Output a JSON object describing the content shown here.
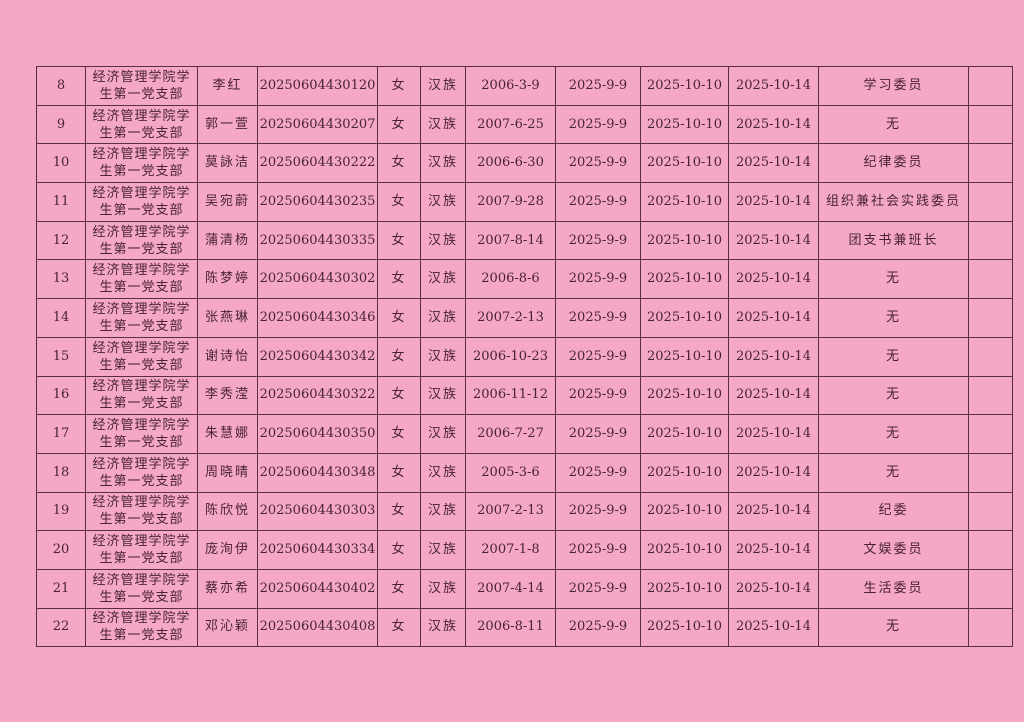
{
  "table": {
    "rows": [
      {
        "no": "8",
        "branch": "经济管理学院学生第一党支部",
        "name": "李红",
        "id": "20250604430120",
        "gender": "女",
        "ethnicity": "汉族",
        "birth": "2006-3-9",
        "date1": "2025-9-9",
        "date2": "2025-10-10",
        "date3": "2025-10-14",
        "role": "学习委员",
        "note": ""
      },
      {
        "no": "9",
        "branch": "经济管理学院学生第一党支部",
        "name": "郭一萱",
        "id": "20250604430207",
        "gender": "女",
        "ethnicity": "汉族",
        "birth": "2007-6-25",
        "date1": "2025-9-9",
        "date2": "2025-10-10",
        "date3": "2025-10-14",
        "role": "无",
        "note": ""
      },
      {
        "no": "10",
        "branch": "经济管理学院学生第一党支部",
        "name": "莫詠洁",
        "id": "20250604430222",
        "gender": "女",
        "ethnicity": "汉族",
        "birth": "2006-6-30",
        "date1": "2025-9-9",
        "date2": "2025-10-10",
        "date3": "2025-10-14",
        "role": "纪律委员",
        "note": ""
      },
      {
        "no": "11",
        "branch": "经济管理学院学生第一党支部",
        "name": "吴宛蔚",
        "id": "20250604430235",
        "gender": "女",
        "ethnicity": "汉族",
        "birth": "2007-9-28",
        "date1": "2025-9-9",
        "date2": "2025-10-10",
        "date3": "2025-10-14",
        "role": "组织兼社会实践委员",
        "note": ""
      },
      {
        "no": "12",
        "branch": "经济管理学院学生第一党支部",
        "name": "蒲清杨",
        "id": "20250604430335",
        "gender": "女",
        "ethnicity": "汉族",
        "birth": "2007-8-14",
        "date1": "2025-9-9",
        "date2": "2025-10-10",
        "date3": "2025-10-14",
        "role": "团支书兼班长",
        "note": ""
      },
      {
        "no": "13",
        "branch": "经济管理学院学生第一党支部",
        "name": "陈梦婷",
        "id": "20250604430302",
        "gender": "女",
        "ethnicity": "汉族",
        "birth": "2006-8-6",
        "date1": "2025-9-9",
        "date2": "2025-10-10",
        "date3": "2025-10-14",
        "role": "无",
        "note": ""
      },
      {
        "no": "14",
        "branch": "经济管理学院学生第一党支部",
        "name": "张燕琳",
        "id": "20250604430346",
        "gender": "女",
        "ethnicity": "汉族",
        "birth": "2007-2-13",
        "date1": "2025-9-9",
        "date2": "2025-10-10",
        "date3": "2025-10-14",
        "role": "无",
        "note": ""
      },
      {
        "no": "15",
        "branch": "经济管理学院学生第一党支部",
        "name": "谢诗怡",
        "id": "20250604430342",
        "gender": "女",
        "ethnicity": "汉族",
        "birth": "2006-10-23",
        "date1": "2025-9-9",
        "date2": "2025-10-10",
        "date3": "2025-10-14",
        "role": "无",
        "note": ""
      },
      {
        "no": "16",
        "branch": "经济管理学院学生第一党支部",
        "name": "李秀滢",
        "id": "20250604430322",
        "gender": "女",
        "ethnicity": "汉族",
        "birth": "2006-11-12",
        "date1": "2025-9-9",
        "date2": "2025-10-10",
        "date3": "2025-10-14",
        "role": "无",
        "note": ""
      },
      {
        "no": "17",
        "branch": "经济管理学院学生第一党支部",
        "name": "朱慧娜",
        "id": "20250604430350",
        "gender": "女",
        "ethnicity": "汉族",
        "birth": "2006-7-27",
        "date1": "2025-9-9",
        "date2": "2025-10-10",
        "date3": "2025-10-14",
        "role": "无",
        "note": ""
      },
      {
        "no": "18",
        "branch": "经济管理学院学生第一党支部",
        "name": "周晓晴",
        "id": "20250604430348",
        "gender": "女",
        "ethnicity": "汉族",
        "birth": "2005-3-6",
        "date1": "2025-9-9",
        "date2": "2025-10-10",
        "date3": "2025-10-14",
        "role": "无",
        "note": ""
      },
      {
        "no": "19",
        "branch": "经济管理学院学生第一党支部",
        "name": "陈欣悦",
        "id": "20250604430303",
        "gender": "女",
        "ethnicity": "汉族",
        "birth": "2007-2-13",
        "date1": "2025-9-9",
        "date2": "2025-10-10",
        "date3": "2025-10-14",
        "role": "纪委",
        "note": ""
      },
      {
        "no": "20",
        "branch": "经济管理学院学生第一党支部",
        "name": "庞洵伊",
        "id": "20250604430334",
        "gender": "女",
        "ethnicity": "汉族",
        "birth": "2007-1-8",
        "date1": "2025-9-9",
        "date2": "2025-10-10",
        "date3": "2025-10-14",
        "role": "文娱委员",
        "note": ""
      },
      {
        "no": "21",
        "branch": "经济管理学院学生第一党支部",
        "name": "蔡亦希",
        "id": "20250604430402",
        "gender": "女",
        "ethnicity": "汉族",
        "birth": "2007-4-14",
        "date1": "2025-9-9",
        "date2": "2025-10-10",
        "date3": "2025-10-14",
        "role": "生活委员",
        "note": ""
      },
      {
        "no": "22",
        "branch": "经济管理学院学生第一党支部",
        "name": "邓沁颖",
        "id": "20250604430408",
        "gender": "女",
        "ethnicity": "汉族",
        "birth": "2006-8-11",
        "date1": "2025-9-9",
        "date2": "2025-10-10",
        "date3": "2025-10-14",
        "role": "无",
        "note": ""
      }
    ]
  }
}
